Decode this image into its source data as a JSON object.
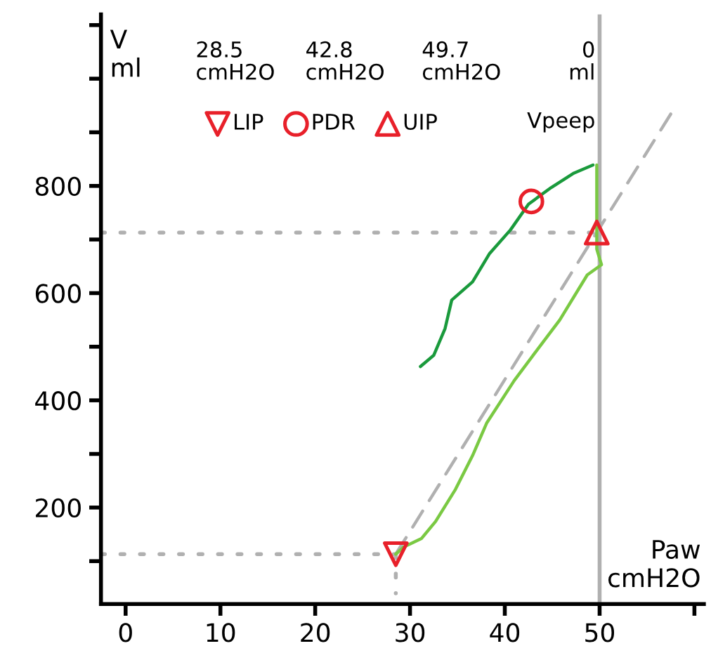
{
  "chart_data": {
    "type": "line",
    "xlabel": "Paw\ncmH2O",
    "ylabel": "V\nml",
    "xlim": [
      -2.6,
      61
    ],
    "ylim": [
      20,
      1120
    ],
    "xticks": [
      0,
      10,
      20,
      30,
      40,
      50,
      {
        "value": 60,
        "label": null
      }
    ],
    "yticks": [
      {
        "value": 100,
        "label": null
      },
      200,
      {
        "value": 300,
        "label": null
      },
      400,
      {
        "value": 500,
        "label": null
      },
      600,
      {
        "value": 700,
        "label": null
      },
      800,
      {
        "value": 900,
        "label": null
      },
      {
        "value": 1000,
        "label": null
      },
      {
        "value": 1100,
        "label": null
      }
    ],
    "grid": false,
    "legend": "top",
    "ref_lines": [
      {
        "axis": "x",
        "value": 50,
        "color": "#b0b0b0",
        "line_style": "solid"
      }
    ],
    "series": [
      {
        "type": "line",
        "color": "#b0b0b0",
        "line_style": "dotted",
        "x": [
          -2.6,
          28.5
        ],
        "values": [
          113,
          113
        ]
      },
      {
        "type": "line",
        "color": "#b0b0b0",
        "line_style": "dotted",
        "x": [
          28.5,
          28.5
        ],
        "values": [
          113,
          40
        ]
      },
      {
        "type": "line",
        "color": "#b0b0b0",
        "line_style": "dotted",
        "x": [
          -2.6,
          49.7
        ],
        "values": [
          713,
          713
        ]
      },
      {
        "color": "#b0b0b0",
        "line_style": "dashed",
        "x": [
          28,
          57.5
        ],
        "values": [
          99,
          934
        ]
      },
      {
        "type": "line",
        "color": "#7ac943",
        "line_style": "solid",
        "x": [
          28.5,
          29.3,
          31.2,
          32.7,
          34.8,
          36.6,
          38.1,
          41.0,
          43.2,
          45.8,
          48.7,
          50.2,
          49.7,
          49.7,
          49.7
        ],
        "values": [
          113,
          126,
          142,
          174,
          234,
          297,
          358,
          437,
          489,
          550,
          634,
          653,
          682,
          700,
          839
        ]
      },
      {
        "type": "line",
        "color": "#1a9a3c",
        "line_style": "solid",
        "x": [
          31.1,
          32.5,
          33.7,
          34.4,
          36.6,
          38.4,
          40.6,
          42.5,
          44.9,
          47.3,
          49.3
        ],
        "values": [
          463,
          484,
          534,
          587,
          621,
          674,
          718,
          766,
          797,
          824,
          839
        ]
      },
      {
        "type": "scatter",
        "name": "LIP",
        "color": "#e8202a",
        "marker": "triangle_down",
        "x": [
          28.5
        ],
        "values": [
          113
        ]
      },
      {
        "type": "scatter",
        "name": "PDR",
        "color": "#e8202a",
        "marker": "circle",
        "x": [
          42.8
        ],
        "values": [
          771
        ]
      },
      {
        "type": "scatter",
        "name": "UIP",
        "color": "#e8202a",
        "marker": "triangle",
        "x": [
          49.7
        ],
        "values": [
          713
        ]
      }
    ],
    "annotations": [
      "28.5\ncmH2O",
      "42.8\ncmH2O",
      "49.7\ncmH2O",
      "0\nml",
      "Vpeep"
    ]
  }
}
